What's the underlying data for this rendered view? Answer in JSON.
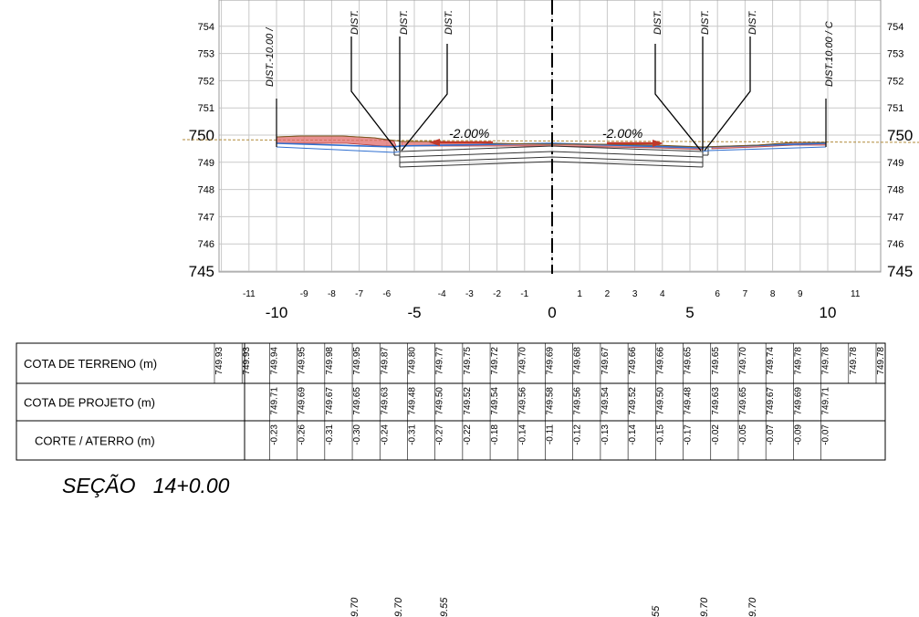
{
  "drawing": {
    "section_title": "SEÇÃO   14+0.00",
    "elevation_labels": [
      {
        "value": 754,
        "label": "754",
        "major": false
      },
      {
        "value": 753,
        "label": "753",
        "major": false
      },
      {
        "value": 752,
        "label": "752",
        "major": false
      },
      {
        "value": 751,
        "label": "751",
        "major": false
      },
      {
        "value": 750,
        "label": "750",
        "major": true
      },
      {
        "value": 749,
        "label": "749",
        "major": false
      },
      {
        "value": 748,
        "label": "748",
        "major": false
      },
      {
        "value": 747,
        "label": "747",
        "major": false
      },
      {
        "value": 746,
        "label": "746",
        "major": false
      },
      {
        "value": 745,
        "label": "745",
        "major": true
      }
    ],
    "elevation_range": [
      745,
      755
    ],
    "offset_range": [
      -12,
      12
    ],
    "offset_labels": [
      {
        "value": -11,
        "label": "-11",
        "major": false
      },
      {
        "value": -10,
        "label": "-10",
        "major": true
      },
      {
        "value": -9,
        "label": "-9",
        "major": false
      },
      {
        "value": -8,
        "label": "-8",
        "major": false
      },
      {
        "value": -7,
        "label": "-7",
        "major": false
      },
      {
        "value": -6,
        "label": "-6",
        "major": false
      },
      {
        "value": -5,
        "label": "-5",
        "major": true
      },
      {
        "value": -4,
        "label": "-4",
        "major": false
      },
      {
        "value": -3,
        "label": "-3",
        "major": false
      },
      {
        "value": -2,
        "label": "-2",
        "major": false
      },
      {
        "value": -1,
        "label": "-1",
        "major": false
      },
      {
        "value": 0,
        "label": "0",
        "major": true
      },
      {
        "value": 1,
        "label": "1",
        "major": false
      },
      {
        "value": 2,
        "label": "2",
        "major": false
      },
      {
        "value": 3,
        "label": "3",
        "major": false
      },
      {
        "value": 4,
        "label": "4",
        "major": false
      },
      {
        "value": 5,
        "label": "5",
        "major": true
      },
      {
        "value": 6,
        "label": "6",
        "major": false
      },
      {
        "value": 7,
        "label": "7",
        "major": false
      },
      {
        "value": 8,
        "label": "8",
        "major": false
      },
      {
        "value": 9,
        "label": "9",
        "major": false
      },
      {
        "value": 10,
        "label": "10",
        "major": true
      },
      {
        "value": 11,
        "label": "11",
        "major": false
      }
    ],
    "slope_left": "-2.00%",
    "slope_right": "-2.00%",
    "dist_labels": [
      {
        "text": "DIST.-10.00 /",
        "offset": -10
      },
      {
        "text": "DIST.",
        "offset": -7
      },
      {
        "text": "DIST.",
        "offset": -5.3
      },
      {
        "text": "DIST.",
        "offset": -4
      },
      {
        "text": "DIST.",
        "offset": 4
      },
      {
        "text": "DIST.",
        "offset": 5.3
      },
      {
        "text": "DIST.",
        "offset": 7
      },
      {
        "text": "DIST.10.00 / C",
        "offset": 10
      }
    ],
    "terrain_profile": [
      {
        "offset": -10,
        "elev": 749.94
      },
      {
        "offset": -8,
        "elev": 749.98
      },
      {
        "offset": -6,
        "elev": 749.87
      },
      {
        "offset": -5.6,
        "elev": 749.8
      },
      {
        "offset": -4,
        "elev": 749.75
      },
      {
        "offset": -2,
        "elev": 749.7
      },
      {
        "offset": 0,
        "elev": 749.69
      },
      {
        "offset": 2,
        "elev": 749.67
      },
      {
        "offset": 4,
        "elev": 749.66
      },
      {
        "offset": 5.3,
        "elev": 749.65
      },
      {
        "offset": 7,
        "elev": 749.7
      },
      {
        "offset": 9,
        "elev": 749.78
      },
      {
        "offset": 10,
        "elev": 749.78
      }
    ],
    "design_profile": [
      {
        "offset": -10,
        "elev": 749.71
      },
      {
        "offset": -5.6,
        "elev": 749.48
      },
      {
        "offset": 0,
        "elev": 749.58
      },
      {
        "offset": 5.4,
        "elev": 749.48
      },
      {
        "offset": 10,
        "elev": 749.71
      }
    ],
    "bottom_labels": [
      "9.70",
      "9.70",
      "9.55",
      "55",
      "9.70",
      "9.70"
    ]
  },
  "table": {
    "rows": [
      {
        "label": "COTA DE TERRENO (m)",
        "cells": [
          "749.93",
          "749.93",
          "749.94",
          "749.95",
          "749.98",
          "749.95",
          "749.87",
          "749.80",
          "749.77",
          "749.75",
          "749.72",
          "749.70",
          "749.69",
          "749.68",
          "749.67",
          "749.66",
          "749.66",
          "749.65",
          "749.65",
          "749.70",
          "749.74",
          "749.78",
          "749.78",
          "749.78",
          "749.78"
        ]
      },
      {
        "label": "COTA DE PROJETO (m)",
        "cells": [
          "",
          "",
          "749.71",
          "749.69",
          "749.67",
          "749.65",
          "749.63",
          "749.48",
          "749.50",
          "749.52",
          "749.54",
          "749.56",
          "749.58",
          "749.56",
          "749.54",
          "749.52",
          "749.50",
          "749.48",
          "749.63",
          "749.65",
          "749.67",
          "749.69",
          "749.71",
          "",
          ""
        ]
      },
      {
        "label": "CORTE / ATERRO (m)",
        "cells": [
          "",
          "",
          "-0.23",
          "-0.26",
          "-0.31",
          "-0.30",
          "-0.24",
          "-0.31",
          "-0.27",
          "-0.22",
          "-0.18",
          "-0.14",
          "-0.11",
          "-0.12",
          "-0.13",
          "-0.14",
          "-0.15",
          "-0.17",
          "-0.02",
          "-0.05",
          "-0.07",
          "-0.09",
          "-0.07",
          "",
          ""
        ]
      }
    ]
  },
  "colors": {
    "grid": "#c9c9c9",
    "cut_fill": "#e06b6b",
    "design_line": "#2f6fd0",
    "terrain_line": "#b08a3a",
    "slope_arrow": "#c0392b"
  }
}
